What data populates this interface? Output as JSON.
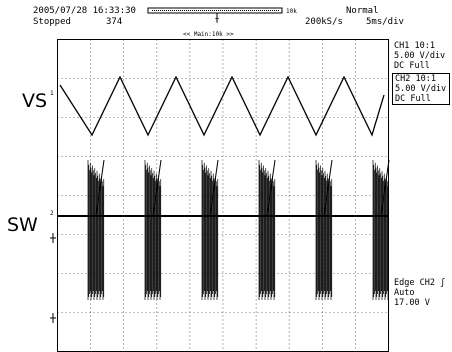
{
  "header": {
    "datetime": "2005/07/28 16:33:30",
    "status": "Stopped",
    "acq_count": "374",
    "record_length": "10k",
    "trigger_mode": "Normal",
    "sample_rate": "200kS/s",
    "timebase": "5ms/div",
    "main_label": "<< Main:10k >>",
    "trigger_pos_marker": "T"
  },
  "traces": {
    "vs_label": "VS",
    "sw_label": "SW",
    "ch1_marker": "1",
    "ch2_marker": "2"
  },
  "channels": [
    {
      "line1": "CH1 10:1",
      "line2": "5.00 V/div",
      "line3": "DC   Full"
    },
    {
      "line1": "CH2 10:1",
      "line2": "5.00 V/div",
      "line3": "DC   Full"
    }
  ],
  "trigger": {
    "line1": "Edge CH2",
    "line2": "Auto",
    "line3": "17.00 V",
    "slope_symbol": "ʃ"
  },
  "colors": {
    "background": "#ffffff",
    "trace": "#000000",
    "grid": "#000000"
  }
}
